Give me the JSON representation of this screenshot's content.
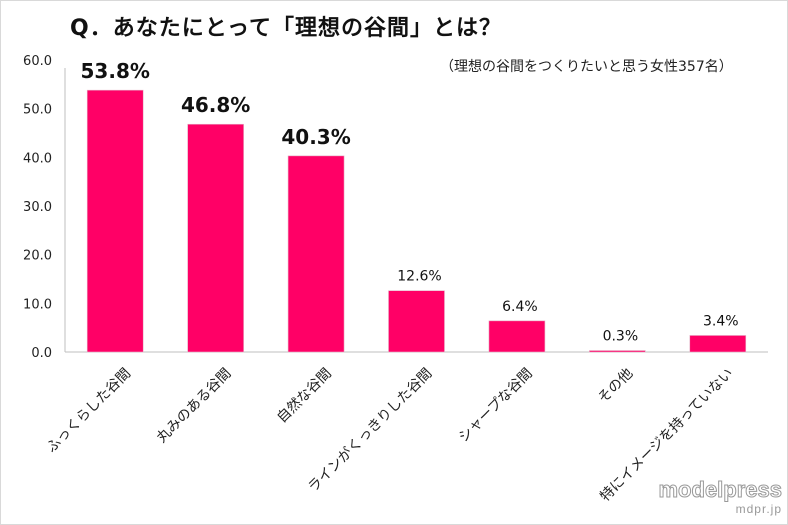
{
  "chart_data": {
    "type": "bar",
    "title": "Q．あなたにとって「理想の谷間」とは？",
    "subtitle": "（理想の谷間をつくりたいと思う女性357名）",
    "categories": [
      "ふっくらした谷間",
      "丸みのある谷間",
      "自然な谷間",
      "ラインがくっきりした谷間",
      "シャープな谷間",
      "その他",
      "特にイメージを持っていない"
    ],
    "values": [
      53.8,
      46.8,
      40.3,
      12.6,
      6.4,
      0.3,
      3.4
    ],
    "data_labels": [
      "53.8%",
      "46.8%",
      "40.3%",
      "12.6%",
      "6.4%",
      "0.3%",
      "3.4%"
    ],
    "yticks": [
      "0.0",
      "10.0",
      "20.0",
      "30.0",
      "40.0",
      "50.0",
      "60.0"
    ],
    "ylim": [
      0,
      60
    ],
    "xlabel": "",
    "ylabel": "",
    "grid": false,
    "bar_color": "#ff0066"
  },
  "watermark": {
    "brand": "modelpress",
    "domain": "mdpr.jp"
  }
}
